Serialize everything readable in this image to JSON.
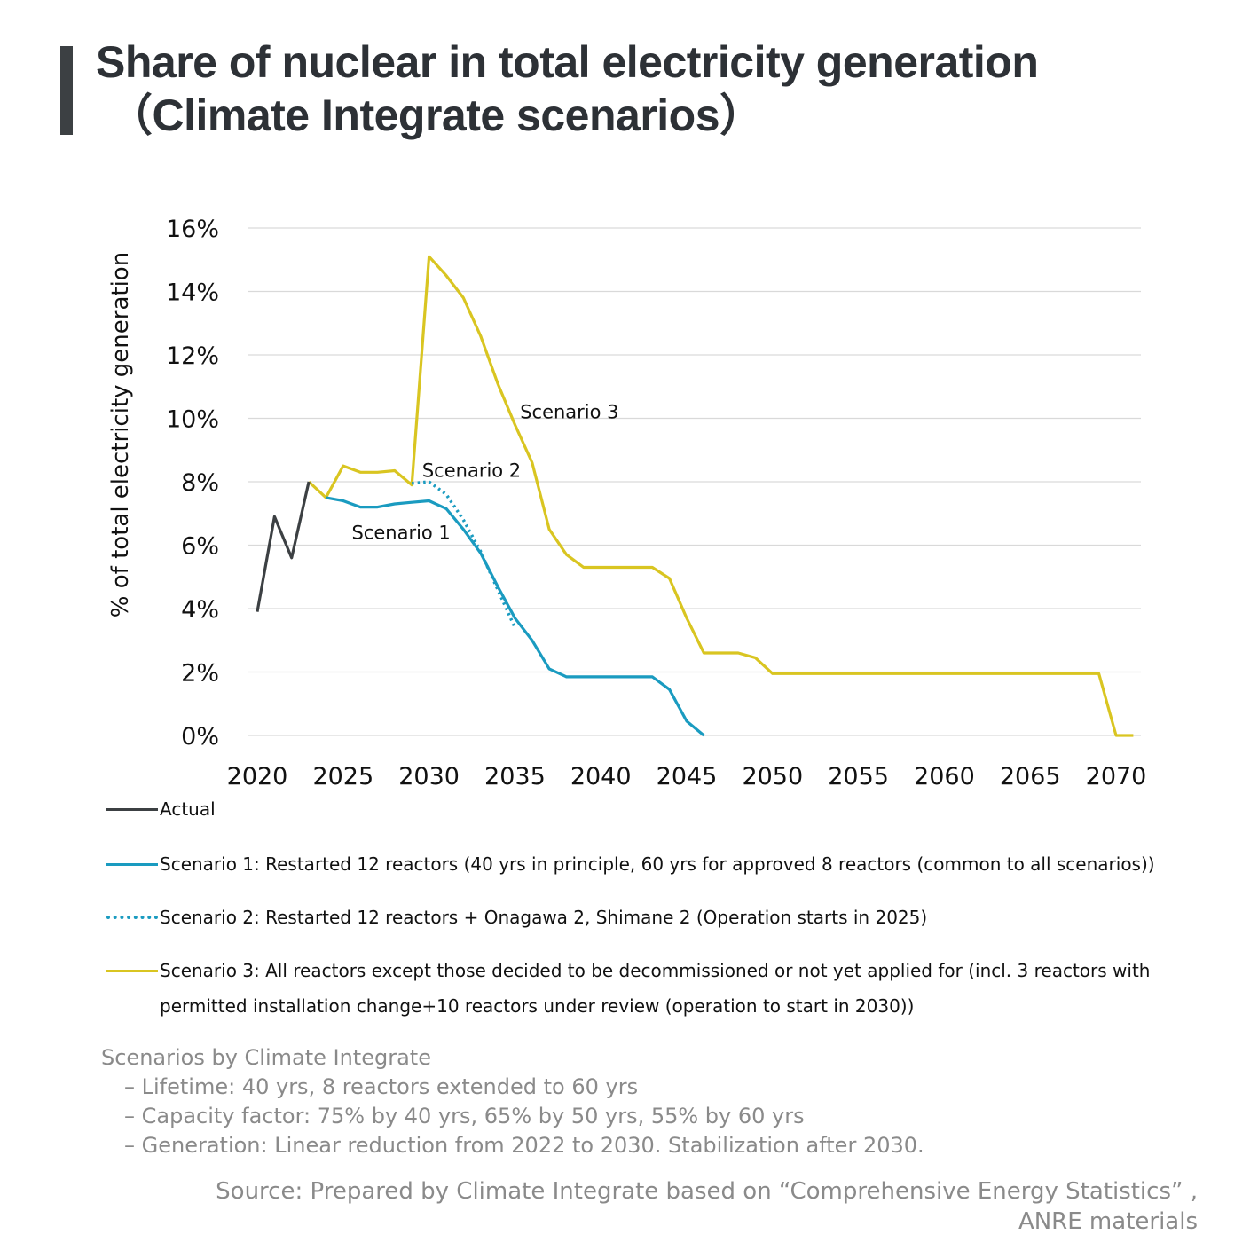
{
  "header": {
    "title_line1": "Share of nuclear in total electricity generation",
    "title_line2": "（Climate Integrate scenarios）"
  },
  "chart_data": {
    "type": "line",
    "title": "Share of nuclear in total electricity generation（Climate Integrate scenarios）",
    "ylabel": "% of total electricity generation",
    "xlabel": "",
    "ylim": [
      0,
      16
    ],
    "xlim": [
      2020,
      2071
    ],
    "y_ticks": [
      "0%",
      "2%",
      "4%",
      "6%",
      "8%",
      "10%",
      "12%",
      "14%",
      "16%"
    ],
    "x_ticks": [
      "2020",
      "2025",
      "2030",
      "2035",
      "2040",
      "2045",
      "2050",
      "2055",
      "2060",
      "2065",
      "2070"
    ],
    "grid": "horizontal",
    "series": [
      {
        "name": "Actual",
        "color": "#3c4043",
        "style": "solid",
        "x": [
          2020,
          2021,
          2022,
          2023
        ],
        "y": [
          3.9,
          6.9,
          5.6,
          8.0
        ]
      },
      {
        "name": "Scenario 1",
        "color": "#1a9bc0",
        "style": "solid",
        "x": [
          2024,
          2025,
          2026,
          2027,
          2028,
          2029,
          2030,
          2031,
          2032,
          2033,
          2034,
          2035,
          2036,
          2037,
          2038,
          2039,
          2040,
          2041,
          2042,
          2043,
          2044,
          2045,
          2046
        ],
        "y": [
          7.5,
          7.4,
          7.2,
          7.2,
          7.3,
          7.35,
          7.4,
          7.15,
          6.5,
          5.75,
          4.7,
          3.7,
          3.0,
          2.1,
          1.85,
          1.85,
          1.85,
          1.85,
          1.85,
          1.85,
          1.45,
          0.45,
          0.0
        ]
      },
      {
        "name": "Scenario 2",
        "color": "#1a9bc0",
        "style": "dotted",
        "x": [
          2029,
          2030,
          2031,
          2032,
          2033,
          2034,
          2035
        ],
        "y": [
          7.95,
          8.0,
          7.6,
          6.8,
          5.8,
          4.6,
          3.4
        ]
      },
      {
        "name": "Scenario 3",
        "color": "#d9c521",
        "style": "solid",
        "x": [
          2023,
          2024,
          2025,
          2026,
          2027,
          2028,
          2029,
          2030,
          2031,
          2032,
          2033,
          2034,
          2035,
          2036,
          2037,
          2038,
          2039,
          2040,
          2041,
          2042,
          2043,
          2044,
          2045,
          2046,
          2047,
          2048,
          2049,
          2050,
          2055,
          2060,
          2065,
          2069,
          2070,
          2071
        ],
        "y": [
          8.0,
          7.5,
          8.5,
          8.3,
          8.3,
          8.35,
          7.9,
          15.1,
          14.5,
          13.8,
          12.6,
          11.1,
          9.8,
          8.6,
          6.5,
          5.7,
          5.3,
          5.3,
          5.3,
          5.3,
          5.3,
          4.95,
          3.7,
          2.6,
          2.6,
          2.6,
          2.45,
          1.95,
          1.95,
          1.95,
          1.95,
          1.95,
          0.0,
          0.0
        ]
      }
    ],
    "annotations": [
      {
        "text": "Scenario 3",
        "x": 2035.3,
        "y": 10.0
      },
      {
        "text": "Scenario 2",
        "x": 2029.6,
        "y": 8.15
      },
      {
        "text": "Scenario 1",
        "x": 2025.5,
        "y": 6.2
      }
    ],
    "legend_position": "bottom"
  },
  "legend": {
    "items": [
      {
        "label": "Actual",
        "color": "#3c4043",
        "style": "solid"
      },
      {
        "label": "Scenario 1: Restarted 12 reactors (40 yrs in principle, 60 yrs for approved 8 reactors (common to all scenarios))",
        "color": "#1a9bc0",
        "style": "solid"
      },
      {
        "label": "Scenario 2: Restarted 12 reactors + Onagawa 2, Shimane 2 (Operation starts in 2025)",
        "color": "#1a9bc0",
        "style": "dotted"
      },
      {
        "label_line1": "Scenario 3: All reactors except those decided to be decommissioned or not yet applied for (incl. 3 reactors with",
        "label_line2": "permitted installation change+10 reactors under review (operation to start in 2030))",
        "color": "#d9c521",
        "style": "solid"
      }
    ]
  },
  "notes": {
    "heading": "Scenarios by Climate Integrate",
    "lines": [
      "– Lifetime: 40 yrs, 8 reactors extended to 60 yrs",
      "– Capacity factor: 75% by 40 yrs, 65% by 50 yrs, 55% by 60 yrs",
      "– Generation: Linear reduction from 2022 to 2030. Stabilization after 2030."
    ]
  },
  "source": {
    "line1": "Source: Prepared by Climate Integrate based on “Comprehensive Energy Statistics” ,",
    "line2": "ANRE materials"
  }
}
